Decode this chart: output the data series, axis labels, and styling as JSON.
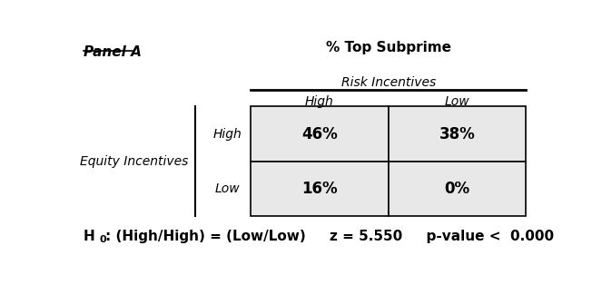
{
  "panel_label": "Panel A",
  "col_header": "% Top Subprime",
  "risk_label": "Risk Incentives",
  "risk_high": "High",
  "risk_low": "Low",
  "equity_label": "Equity Incentives",
  "equity_high": "High",
  "equity_low": "Low",
  "cell_hh": "46%",
  "cell_hl": "38%",
  "cell_lh": "16%",
  "cell_ll": "0%",
  "cell_bg": "#e8e8e8",
  "hypothesis_main": ": (High/High) = (Low/Low)     z = 5.550     p-value <  0.000",
  "fig_width": 6.52,
  "fig_height": 3.14,
  "dpi": 100
}
